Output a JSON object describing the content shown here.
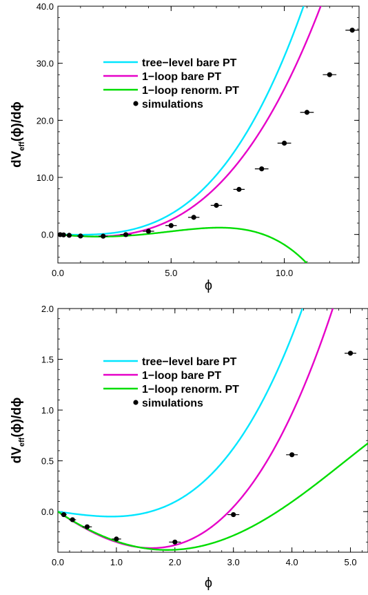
{
  "chart_data": [
    {
      "type": "line",
      "xlabel": "ϕ",
      "ylabel": {
        "main": "dV",
        "sub": "eff",
        "tail": "(ϕ)/dϕ"
      },
      "xlim": [
        0,
        13.3
      ],
      "ylim": [
        -5,
        40
      ],
      "xticks": [
        0,
        5,
        10
      ],
      "xtick_labels": [
        "0.0",
        "5.0",
        "10.0"
      ],
      "yticks": [
        0,
        10,
        20,
        30,
        40
      ],
      "ytick_labels": [
        "0.0",
        "10.0",
        "20.0",
        "30.0",
        "40.0"
      ],
      "legend": [
        "tree−level bare PT",
        "1−loop bare PT",
        "1−loop renorm. PT",
        "simulations"
      ],
      "legend_position": "upper-left",
      "series": [
        {
          "name": "tree−level bare PT",
          "color": "#00e6ff",
          "kind": "line",
          "formula": "tree"
        },
        {
          "name": "1−loop bare PT",
          "color": "#e600c8",
          "kind": "line",
          "formula": "oneloop"
        },
        {
          "name": "1−loop renorm. PT",
          "color": "#00dd00",
          "kind": "line",
          "formula": "renorm"
        },
        {
          "name": "simulations",
          "color": "#000000",
          "kind": "points",
          "x": [
            0.1,
            0.25,
            0.5,
            1,
            2,
            3,
            4,
            5,
            6,
            7,
            8,
            9,
            10,
            11,
            12,
            13
          ],
          "y": [
            -0.03,
            -0.08,
            -0.15,
            -0.27,
            -0.3,
            -0.03,
            0.56,
            1.56,
            3.0,
            5.1,
            7.9,
            11.5,
            16.0,
            21.4,
            28.0,
            35.8
          ],
          "xerr": [
            0.05,
            0.05,
            0.12,
            0.15,
            0.2,
            0.25,
            0.25,
            0.25,
            0.25,
            0.25,
            0.25,
            0.3,
            0.3,
            0.3,
            0.3,
            0.3
          ]
        }
      ]
    },
    {
      "type": "line",
      "xlabel": "ϕ",
      "ylabel": {
        "main": "dV",
        "sub": "eff",
        "tail": "(ϕ)/dϕ"
      },
      "xlim": [
        0,
        5.3
      ],
      "ylim": [
        -0.4,
        2.0
      ],
      "xticks": [
        0,
        1,
        2,
        3,
        4,
        5
      ],
      "xtick_labels": [
        "0.0",
        "1.0",
        "2.0",
        "3.0",
        "4.0",
        "5.0"
      ],
      "yticks": [
        0,
        0.5,
        1,
        1.5,
        2
      ],
      "ytick_labels": [
        "0.0",
        "0.5",
        "1.0",
        "1.5",
        "2.0"
      ],
      "legend": [
        "tree−level bare PT",
        "1−loop bare PT",
        "1−loop renorm. PT",
        "simulations"
      ],
      "legend_position": "upper-left",
      "series": [
        {
          "name": "tree−level bare PT",
          "color": "#00e6ff",
          "kind": "line",
          "formula": "tree"
        },
        {
          "name": "1−loop bare PT",
          "color": "#e600c8",
          "kind": "line",
          "formula": "oneloop"
        },
        {
          "name": "1−loop renorm. PT",
          "color": "#00dd00",
          "kind": "line",
          "formula": "renorm"
        },
        {
          "name": "simulations",
          "color": "#000000",
          "kind": "points",
          "x": [
            0.1,
            0.25,
            0.5,
            1,
            2,
            3,
            4,
            5
          ],
          "y": [
            -0.03,
            -0.08,
            -0.15,
            -0.27,
            -0.3,
            -0.03,
            0.56,
            1.56
          ],
          "xerr": [
            0.05,
            0.06,
            0.08,
            0.08,
            0.1,
            0.1,
            0.1,
            0.1
          ]
        }
      ]
    }
  ]
}
